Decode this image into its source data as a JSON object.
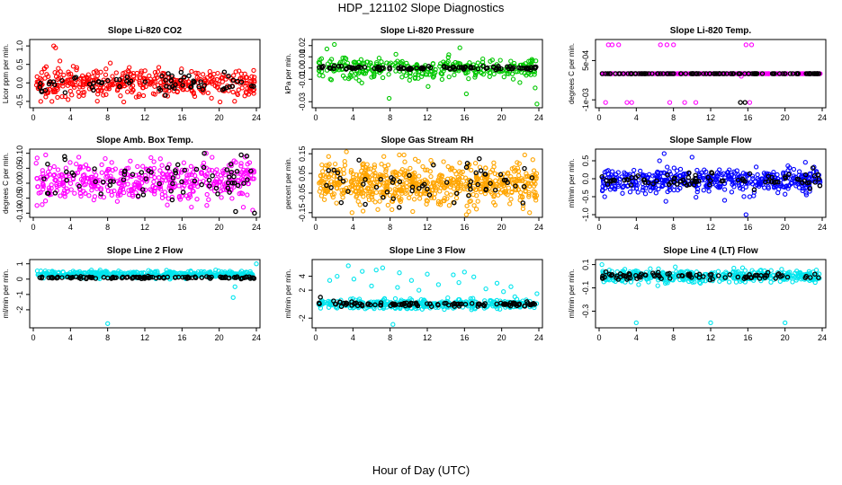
{
  "page": {
    "title": "HDP_121102  Slope Diagnostics",
    "x_axis_label": "Hour of Day (UTC)"
  },
  "chart_data": [
    {
      "type": "scatter",
      "title": "Slope Li-820 CO2",
      "ylabel": "Licor ppm per min.",
      "color": "#ff0000",
      "xlim": [
        0,
        24
      ],
      "ylim": [
        -0.6,
        1.1
      ],
      "xticks": [
        0,
        4,
        8,
        12,
        16,
        20,
        24
      ],
      "yticks": [
        {
          "v": -0.5,
          "label": "-0.5"
        },
        {
          "v": 0.0,
          "label": "0.0"
        },
        {
          "v": 0.5,
          "label": "0.5"
        },
        {
          "v": 1.0,
          "label": "1.0"
        }
      ],
      "series": [
        {
          "role": "colored",
          "center": 0.0,
          "spread": 0.18,
          "count": 420,
          "outliers": [
            [
              2.2,
              1.0
            ],
            [
              2.4,
              0.95
            ],
            [
              0.8,
              -0.5
            ],
            [
              13.5,
              0.42
            ],
            [
              4.3,
              0.45
            ],
            [
              2.0,
              -0.5
            ]
          ]
        },
        {
          "role": "black",
          "center": 0.0,
          "spread": 0.12,
          "count": 70,
          "outliers": []
        }
      ]
    },
    {
      "type": "scatter",
      "title": "Slope Li-820 Pressure",
      "ylabel": "kPa per min.",
      "color": "#00c800",
      "xlim": [
        0,
        24
      ],
      "ylim": [
        -0.033,
        0.023
      ],
      "xticks": [
        0,
        4,
        8,
        12,
        16,
        20,
        24
      ],
      "yticks": [
        {
          "v": -0.03,
          "label": "-0.03"
        },
        {
          "v": -0.01,
          "label": "-0.01"
        },
        {
          "v": 0.0,
          "label": "0.00"
        },
        {
          "v": 0.01,
          "label": "0.01"
        },
        {
          "v": 0.02,
          "label": "0.02"
        }
      ],
      "series": [
        {
          "role": "colored",
          "center": 0.0,
          "spread": 0.005,
          "count": 320,
          "outliers": [
            [
              7.9,
              -0.027
            ],
            [
              16.2,
              -0.023
            ],
            [
              23.8,
              -0.032
            ],
            [
              2.0,
              0.021
            ],
            [
              1.2,
              0.017
            ],
            [
              15.5,
              0.018
            ]
          ]
        },
        {
          "role": "black",
          "center": 0.0,
          "spread": 0.0008,
          "count": 110,
          "outliers": []
        }
      ]
    },
    {
      "type": "scatter",
      "title": "Slope Li-820 Temp.",
      "ylabel": "degrees C per min.",
      "color": "#ff00ff",
      "xlim": [
        0,
        24
      ],
      "ylim": [
        -0.0012,
        0.0012
      ],
      "xticks": [
        0,
        4,
        8,
        12,
        16,
        20,
        24
      ],
      "yticks": [
        {
          "v": -0.001,
          "label": "-1e-03"
        },
        {
          "v": 0.0005,
          "label": "5e-04"
        }
      ],
      "series": [
        {
          "role": "colored",
          "center": 0.0,
          "spread": 0.0,
          "count": 320,
          "outliers": [
            [
              1.0,
              0.0011
            ],
            [
              1.4,
              0.0011
            ],
            [
              2.1,
              0.0011
            ],
            [
              6.6,
              0.0011
            ],
            [
              7.3,
              0.0011
            ],
            [
              8.0,
              0.0011
            ],
            [
              15.8,
              0.0011
            ],
            [
              16.4,
              0.0011
            ],
            [
              0.7,
              -0.0011
            ],
            [
              3.0,
              -0.0011
            ],
            [
              3.5,
              -0.0011
            ],
            [
              7.6,
              -0.0011
            ],
            [
              9.2,
              -0.0011
            ],
            [
              10.4,
              -0.0011
            ],
            [
              16.2,
              -0.0011
            ],
            [
              15.3,
              -0.0001
            ]
          ]
        },
        {
          "role": "black",
          "center": 0.0,
          "spread": 0.0,
          "count": 110,
          "outliers": [
            [
              15.2,
              -0.0011
            ],
            [
              15.7,
              -0.0011
            ]
          ]
        }
      ]
    },
    {
      "type": "scatter",
      "title": "Slope Amb. Box Temp.",
      "ylabel": "degrees C per min.",
      "color": "#ff00ff",
      "xlim": [
        0,
        24
      ],
      "ylim": [
        -0.105,
        0.105
      ],
      "xticks": [
        0,
        4,
        8,
        12,
        16,
        20,
        24
      ],
      "yticks": [
        {
          "v": -0.1,
          "label": "-0.10"
        },
        {
          "v": -0.05,
          "label": "-0.05"
        },
        {
          "v": 0.0,
          "label": "0.00"
        },
        {
          "v": 0.05,
          "label": "0.05"
        },
        {
          "v": 0.1,
          "label": "0.10"
        }
      ],
      "series": [
        {
          "role": "colored",
          "center": 0.01,
          "spread": 0.035,
          "count": 450,
          "outliers": [
            [
              18.6,
              0.1
            ],
            [
              22.6,
              -0.08
            ],
            [
              23.6,
              -0.09
            ]
          ]
        },
        {
          "role": "black",
          "center": 0.01,
          "spread": 0.035,
          "count": 70,
          "outliers": [
            [
              23.8,
              -0.1
            ],
            [
              18.4,
              0.1
            ]
          ]
        }
      ]
    },
    {
      "type": "scatter",
      "title": "Slope Gas Stream RH",
      "ylabel": "percent per min.",
      "color": "#ffa500",
      "xlim": [
        0,
        24
      ],
      "ylim": [
        -0.16,
        0.16
      ],
      "xticks": [
        0,
        4,
        8,
        12,
        16,
        20,
        24
      ],
      "yticks": [
        {
          "v": -0.15,
          "label": "-0.15"
        },
        {
          "v": -0.05,
          "label": "-0.05"
        },
        {
          "v": 0.05,
          "label": "0.05"
        },
        {
          "v": 0.15,
          "label": "0.15"
        }
      ],
      "series": [
        {
          "role": "colored",
          "center": 0.0,
          "spread": 0.05,
          "count": 650,
          "outliers": [
            [
              3.3,
              0.16
            ],
            [
              3.9,
              -0.15
            ],
            [
              16.2,
              -0.16
            ],
            [
              23.0,
              -0.15
            ],
            [
              22.3,
              -0.13
            ]
          ]
        },
        {
          "role": "black",
          "center": 0.0,
          "spread": 0.05,
          "count": 60,
          "outliers": []
        }
      ]
    },
    {
      "type": "scatter",
      "title": "Slope Sample Flow",
      "ylabel": "ml/min per min.",
      "color": "#0000ff",
      "xlim": [
        0,
        24
      ],
      "ylim": [
        -1.0,
        0.75
      ],
      "xticks": [
        0,
        4,
        8,
        12,
        16,
        20,
        24
      ],
      "yticks": [
        {
          "v": -1.0,
          "label": "-1.0"
        },
        {
          "v": -0.5,
          "label": "-0.5"
        },
        {
          "v": 0.0,
          "label": "0.0"
        },
        {
          "v": 0.5,
          "label": "0.5"
        }
      ],
      "series": [
        {
          "role": "colored",
          "center": -0.05,
          "spread": 0.16,
          "count": 450,
          "outliers": [
            [
              15.8,
              -1.0
            ],
            [
              7.0,
              0.7
            ],
            [
              10.0,
              0.6
            ],
            [
              6.5,
              0.5
            ],
            [
              0.6,
              -0.5
            ],
            [
              13.5,
              -0.6
            ],
            [
              16.2,
              -0.5
            ],
            [
              22.3,
              -0.45
            ]
          ]
        },
        {
          "role": "black",
          "center": -0.05,
          "spread": 0.1,
          "count": 80,
          "outliers": [
            [
              23.0,
              0.3
            ]
          ]
        }
      ]
    },
    {
      "type": "scatter",
      "title": "Slope Line 2 Flow",
      "ylabel": "ml/min per min.",
      "color": "#00e5ee",
      "xlim": [
        0,
        24
      ],
      "ylim": [
        -3.0,
        1.1
      ],
      "xticks": [
        0,
        4,
        8,
        12,
        16,
        20,
        24
      ],
      "yticks": [
        {
          "v": -2,
          "label": "-2"
        },
        {
          "v": -1,
          "label": "-1"
        },
        {
          "v": 0,
          "label": "0"
        },
        {
          "v": 1,
          "label": "1"
        }
      ],
      "series": [
        {
          "role": "colored",
          "center": 0.3,
          "spread": 0.12,
          "count": 420,
          "outliers": [
            [
              8.0,
              -2.9
            ],
            [
              21.5,
              -1.2
            ],
            [
              24.0,
              1.0
            ],
            [
              21.7,
              -0.5
            ]
          ]
        },
        {
          "role": "black",
          "center": 0.1,
          "spread": 0.03,
          "count": 110,
          "outliers": []
        }
      ]
    },
    {
      "type": "scatter",
      "title": "Slope Line 3 Flow",
      "ylabel": "ml/min per min.",
      "color": "#00e5ee",
      "xlim": [
        0,
        24
      ],
      "ylim": [
        -3.0,
        6.0
      ],
      "xticks": [
        0,
        4,
        8,
        12,
        16,
        20,
        24
      ],
      "yticks": [
        {
          "v": -2,
          "label": "-2"
        },
        {
          "v": 2,
          "label": "2"
        },
        {
          "v": 4,
          "label": "4"
        }
      ],
      "series": [
        {
          "role": "colored",
          "center": 0.0,
          "spread": 0.35,
          "count": 380,
          "outliers": [
            [
              3.5,
              5.5
            ],
            [
              7.2,
              5.2
            ],
            [
              8.3,
              -2.9
            ],
            [
              5.0,
              4.7
            ],
            [
              6.5,
              4.9
            ],
            [
              9.0,
              4.5
            ],
            [
              12.0,
              4.3
            ],
            [
              14.8,
              4.2
            ],
            [
              17.0,
              3.9
            ],
            [
              2.3,
              4.0
            ],
            [
              19.5,
              3.0
            ],
            [
              21.0,
              2.5
            ],
            [
              23.8,
              1.5
            ],
            [
              4.1,
              3.6
            ],
            [
              10.3,
              3.4
            ],
            [
              13.2,
              2.8
            ],
            [
              16.0,
              4.6
            ],
            [
              11.1,
              2.0
            ],
            [
              1.5,
              3.4
            ],
            [
              18.3,
              2.2
            ],
            [
              6.0,
              2.6
            ],
            [
              8.8,
              2.4
            ],
            [
              15.4,
              3.1
            ],
            [
              20.2,
              1.8
            ]
          ]
        },
        {
          "role": "black",
          "center": 0.0,
          "spread": 0.15,
          "count": 110,
          "outliers": [
            [
              0.5,
              1.0
            ]
          ]
        }
      ]
    },
    {
      "type": "scatter",
      "title": "Slope Line 4 (LT) Flow",
      "ylabel": "ml/min per min.",
      "color": "#00e5ee",
      "xlim": [
        0,
        24
      ],
      "ylim": [
        -0.42,
        0.12
      ],
      "xticks": [
        0,
        4,
        8,
        12,
        16,
        20,
        24
      ],
      "yticks": [
        {
          "v": -0.3,
          "label": "-0.3"
        },
        {
          "v": -0.1,
          "label": "-0.1"
        },
        {
          "v": 0.1,
          "label": "0.1"
        }
      ],
      "series": [
        {
          "role": "colored",
          "center": 0.0,
          "spread": 0.025,
          "count": 450,
          "outliers": [
            [
              4.0,
              -0.4
            ],
            [
              12.0,
              -0.4
            ],
            [
              20.0,
              -0.4
            ],
            [
              0.3,
              0.1
            ],
            [
              8.2,
              0.08
            ],
            [
              14.5,
              0.07
            ]
          ]
        },
        {
          "role": "black",
          "center": 0.0,
          "spread": 0.015,
          "count": 90,
          "outliers": []
        }
      ]
    }
  ]
}
